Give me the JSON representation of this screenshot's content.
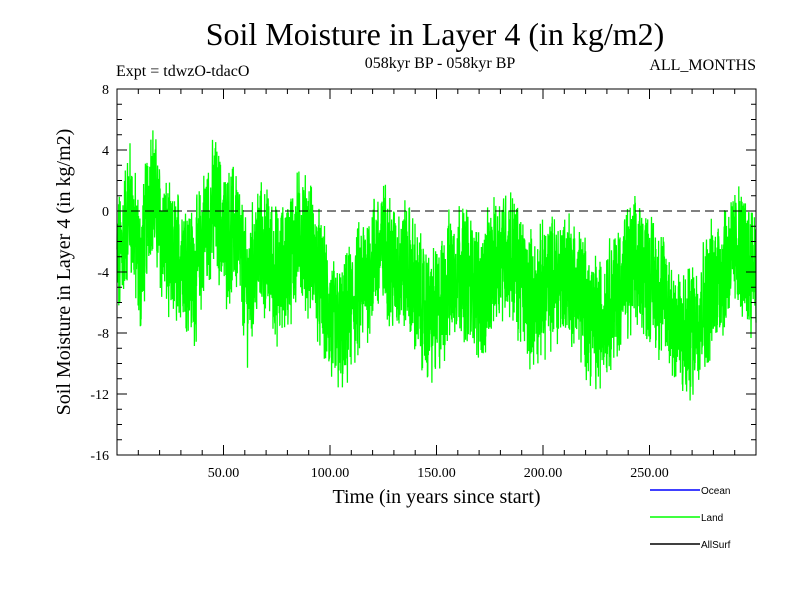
{
  "header": {
    "title": "Soil Moisture in Layer 4 (in kg/m2)",
    "expt": "Expt = tdwzO-tdacO",
    "period": "058kyr BP - 058kyr BP",
    "months": "ALL_MONTHS"
  },
  "colors": {
    "land": "#00ff00",
    "ocean": "#0000ff",
    "allsurf": "#000000",
    "zero_line": "#000000"
  },
  "chart_data": {
    "type": "line",
    "title": "Soil Moisture in Layer 4 (in kg/m2)",
    "xlabel": "Time (in years since start)",
    "ylabel": "Soil Moisture in Layer 4 (in kg/m2)",
    "xlim": [
      0,
      300
    ],
    "ylim": [
      -16,
      8
    ],
    "x_ticks": [
      50,
      100,
      150,
      200,
      250
    ],
    "x_tick_labels": [
      "50.00",
      "100.00",
      "150.00",
      "200.00",
      "250.00"
    ],
    "y_ticks": [
      -16,
      -12,
      -8,
      -4,
      0,
      4,
      8
    ],
    "y_tick_labels": [
      "-16",
      "-12",
      "-8",
      "-4",
      "0",
      "4",
      "8"
    ],
    "reference_line": {
      "y": 0,
      "style": "dashed"
    },
    "legend": {
      "placement": "bottom-right",
      "entries": [
        "Ocean",
        "Land",
        "AllSurf"
      ]
    },
    "series": [
      {
        "name": "Land",
        "x_start": 1,
        "x_step": 5,
        "values": [
          -3.2,
          0.5,
          -4.0,
          2.0,
          -1.5,
          -3.5,
          -2.5,
          -4.5,
          -1.5,
          0.5,
          -2.0,
          -1.0,
          -5.5,
          -2.5,
          -3.0,
          -4.5,
          -3.0,
          -1.5,
          -2.5,
          -5.0,
          -7.5,
          -8.0,
          -6.0,
          -4.5,
          -3.0,
          -2.5,
          -4.0,
          -3.5,
          -5.5,
          -7.0,
          -6.5,
          -4.5,
          -3.5,
          -4.5,
          -5.5,
          -4.0,
          -2.5,
          -3.0,
          -5.0,
          -6.0,
          -5.0,
          -4.5,
          -4.0,
          -5.0,
          -6.5,
          -7.5,
          -6.0,
          -5.0,
          -4.0,
          -3.5,
          -4.5,
          -5.5,
          -7.0,
          -8.5,
          -7.5,
          -6.0,
          -4.5,
          -3.5,
          -2.5,
          -3.5
        ]
      },
      {
        "name": "Ocean",
        "values": []
      },
      {
        "name": "AllSurf",
        "values": []
      }
    ],
    "grid": false
  }
}
